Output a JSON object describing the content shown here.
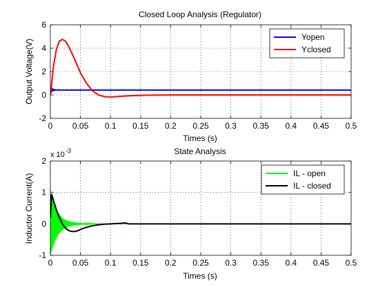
{
  "chart_data": [
    {
      "type": "line",
      "title": "Closed Loop Analysis (Regulator)",
      "xlabel": "Times (s)",
      "ylabel": "Output Voltage(V)",
      "xlim": [
        0,
        0.5
      ],
      "ylim": [
        -2,
        6
      ],
      "xticks": [
        "0",
        "0.05",
        "0.1",
        "0.15",
        "0.2",
        "0.25",
        "0.3",
        "0.35",
        "0.4",
        "0.45",
        "0.5"
      ],
      "yticks": [
        "-2",
        "0",
        "2",
        "4",
        "6"
      ],
      "grid": true,
      "legend_position": "top-right",
      "series": [
        {
          "name": "Yopen",
          "color": "#0000ff",
          "x": [
            0,
            0.001,
            0.002,
            0.003,
            0.004,
            0.005,
            0.006,
            0.007,
            0.008,
            0.009,
            0.01,
            0.012,
            0.015,
            0.02,
            0.03,
            0.05,
            0.1,
            0.2,
            0.3,
            0.4,
            0.5
          ],
          "y": [
            0,
            0.55,
            0.35,
            0.5,
            0.38,
            0.46,
            0.4,
            0.45,
            0.41,
            0.44,
            0.42,
            0.43,
            0.42,
            0.42,
            0.42,
            0.42,
            0.42,
            0.42,
            0.42,
            0.42,
            0.42
          ]
        },
        {
          "name": "Yclosed",
          "color": "#ff0000",
          "x": [
            0,
            0.002,
            0.005,
            0.01,
            0.015,
            0.02,
            0.025,
            0.03,
            0.04,
            0.05,
            0.06,
            0.07,
            0.08,
            0.09,
            0.1,
            0.11,
            0.12,
            0.14,
            0.16,
            0.2,
            0.3,
            0.4,
            0.5
          ],
          "y": [
            0,
            0.9,
            2.4,
            3.9,
            4.6,
            4.75,
            4.6,
            4.2,
            3.1,
            1.9,
            1.0,
            0.35,
            0.0,
            -0.15,
            -0.18,
            -0.15,
            -0.1,
            -0.05,
            -0.02,
            0,
            0,
            0,
            0
          ]
        }
      ]
    },
    {
      "type": "line",
      "title": "State Analysis",
      "xlabel": "Times (s)",
      "ylabel": "Inductor Current(A)",
      "y_exponent_label": "x 10",
      "y_exponent_power": "-3",
      "xlim": [
        0,
        0.5
      ],
      "ylim": [
        -1,
        2
      ],
      "xticks": [
        "0",
        "0.05",
        "0.1",
        "0.15",
        "0.2",
        "0.25",
        "0.3",
        "0.35",
        "0.4",
        "0.45",
        "0.5"
      ],
      "yticks": [
        "-1",
        "0",
        "1",
        "2"
      ],
      "grid": true,
      "legend_position": "top-right",
      "series": [
        {
          "name": "IL - open",
          "color": "#00ff00",
          "envelope": {
            "x": [
              0,
              0.005,
              0.01,
              0.015,
              0.02,
              0.025,
              0.03,
              0.04,
              0.05,
              0.06,
              0.07,
              0.08,
              0.1,
              0.12,
              0.5
            ],
            "upper": [
              1.15,
              0.7,
              0.45,
              0.3,
              0.2,
              0.13,
              0.09,
              0.05,
              0.03,
              0.02,
              0.01,
              0.005,
              0.0,
              0.0,
              0.0
            ],
            "lower": [
              -1.0,
              -0.7,
              -0.45,
              -0.3,
              -0.2,
              -0.13,
              -0.09,
              -0.05,
              -0.03,
              -0.02,
              -0.01,
              -0.005,
              0.0,
              0.0,
              0.0
            ]
          }
        },
        {
          "name": "IL - closed",
          "color": "#000000",
          "x": [
            0,
            0.002,
            0.005,
            0.01,
            0.015,
            0.02,
            0.025,
            0.03,
            0.035,
            0.04,
            0.045,
            0.05,
            0.06,
            0.07,
            0.08,
            0.09,
            0.1,
            0.11,
            0.12,
            0.125,
            0.13,
            0.15,
            0.2,
            0.3,
            0.4,
            0.5
          ],
          "y": [
            0.2,
            0.95,
            0.75,
            0.45,
            0.2,
            0.0,
            -0.13,
            -0.21,
            -0.24,
            -0.245,
            -0.22,
            -0.18,
            -0.11,
            -0.06,
            -0.03,
            -0.01,
            0.0,
            0.01,
            0.02,
            0.03,
            0.0,
            0.0,
            0.0,
            0.0,
            0.0,
            0.0
          ]
        }
      ]
    }
  ]
}
